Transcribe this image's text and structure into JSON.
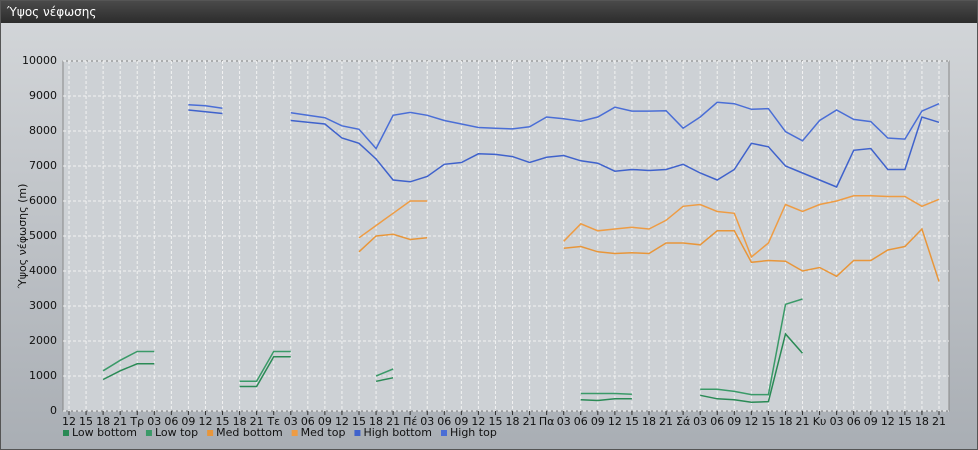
{
  "window_title": "Ύψος νέφωσης",
  "chart_data": {
    "type": "line",
    "y_label": "Ύψος νέφωσης (m)",
    "categories": [
      "12",
      "15",
      "18",
      "21",
      "Τρ",
      "03",
      "06",
      "09",
      "12",
      "15",
      "18",
      "21",
      "Τε",
      "03",
      "06",
      "09",
      "12",
      "15",
      "18",
      "21",
      "Πέ",
      "03",
      "06",
      "09",
      "12",
      "15",
      "18",
      "21",
      "Πα",
      "03",
      "06",
      "09",
      "12",
      "15",
      "18",
      "21",
      "Σά",
      "03",
      "06",
      "09",
      "12",
      "15",
      "18",
      "21",
      "Κυ",
      "03",
      "06",
      "09",
      "12",
      "15",
      "18",
      "21"
    ],
    "ylim": [
      0,
      10000
    ],
    "yticks": [
      0,
      1000,
      2000,
      3000,
      4000,
      5000,
      6000,
      7000,
      8000,
      9000,
      10000
    ],
    "grid": true,
    "legend": "bottom",
    "series": [
      {
        "name": "Low bottom",
        "color": "#2a8a55",
        "values": [
          null,
          null,
          900,
          1150,
          1350,
          1350,
          null,
          null,
          null,
          null,
          700,
          700,
          1550,
          1550,
          null,
          null,
          null,
          null,
          850,
          950,
          null,
          null,
          null,
          null,
          null,
          null,
          null,
          null,
          null,
          null,
          320,
          300,
          350,
          350,
          null,
          null,
          null,
          450,
          350,
          320,
          250,
          270,
          2200,
          1650,
          null,
          null,
          null,
          null,
          null,
          null,
          null,
          null
        ]
      },
      {
        "name": "Low top",
        "color": "#3a9a68",
        "values": [
          null,
          null,
          1150,
          1450,
          1700,
          1700,
          null,
          null,
          null,
          null,
          850,
          850,
          1700,
          1700,
          null,
          null,
          null,
          null,
          1000,
          1200,
          null,
          null,
          null,
          null,
          null,
          null,
          null,
          null,
          null,
          null,
          500,
          500,
          500,
          480,
          null,
          null,
          null,
          620,
          620,
          560,
          470,
          470,
          3050,
          3200,
          null,
          null,
          null,
          null,
          null,
          null,
          null,
          null
        ]
      },
      {
        "name": "Med bottom",
        "color": "#e8963a",
        "values": [
          null,
          null,
          null,
          null,
          null,
          null,
          null,
          null,
          null,
          null,
          null,
          null,
          null,
          null,
          null,
          null,
          null,
          4550,
          5000,
          5050,
          4900,
          4950,
          null,
          null,
          null,
          null,
          null,
          null,
          null,
          4650,
          4700,
          4550,
          4500,
          4520,
          4500,
          4800,
          4800,
          4750,
          5150,
          5150,
          4250,
          4300,
          4280,
          4000,
          4100,
          3850,
          4300,
          4300,
          4600,
          4700,
          5200,
          3700
        ]
      },
      {
        "name": "Med top",
        "color": "#ee9c44",
        "values": [
          null,
          null,
          null,
          null,
          null,
          null,
          null,
          null,
          null,
          null,
          null,
          null,
          null,
          null,
          null,
          null,
          null,
          4950,
          5300,
          5650,
          6000,
          6000,
          null,
          null,
          null,
          null,
          null,
          null,
          null,
          4850,
          5350,
          5150,
          5200,
          5250,
          5200,
          5450,
          5850,
          5900,
          5700,
          5650,
          4400,
          4800,
          5900,
          5700,
          5900,
          6000,
          6150,
          6150,
          6130,
          6130,
          5850,
          6050
        ]
      },
      {
        "name": "High bottom",
        "color": "#3f62cc",
        "values": [
          null,
          null,
          null,
          null,
          null,
          null,
          null,
          8600,
          8550,
          8500,
          null,
          null,
          null,
          8300,
          8250,
          8200,
          7800,
          7650,
          7200,
          6600,
          6550,
          6700,
          7050,
          7100,
          7350,
          7330,
          7270,
          7100,
          7250,
          7300,
          7150,
          7080,
          6850,
          6900,
          6870,
          6900,
          7050,
          6800,
          6600,
          6900,
          7650,
          7550,
          7000,
          6800,
          6600,
          6400,
          7450,
          7500,
          6900,
          6900,
          8400,
          8250
        ]
      },
      {
        "name": "High top",
        "color": "#4a6ed6",
        "values": [
          null,
          null,
          null,
          null,
          null,
          null,
          null,
          8750,
          8720,
          8650,
          null,
          null,
          null,
          8520,
          8450,
          8380,
          8150,
          8050,
          7500,
          8450,
          8530,
          8450,
          8300,
          8200,
          8100,
          8080,
          8060,
          8120,
          8400,
          8350,
          8280,
          8400,
          8680,
          8570,
          8570,
          8580,
          8080,
          8400,
          8820,
          8780,
          8620,
          8640,
          7980,
          7720,
          8300,
          8600,
          8330,
          8270,
          7800,
          7770,
          8570,
          8780
        ]
      }
    ]
  }
}
